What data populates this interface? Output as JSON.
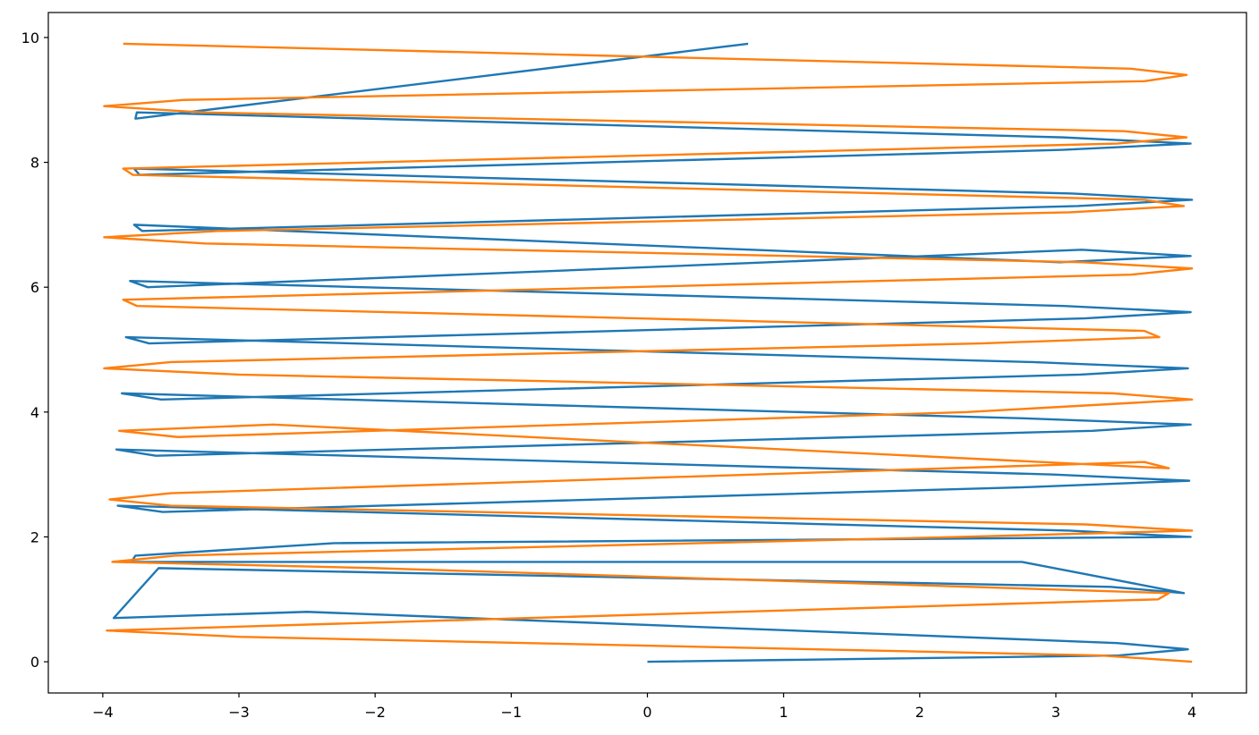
{
  "chart_data": {
    "type": "line",
    "title": "",
    "xlabel": "",
    "ylabel": "",
    "xlim": [
      -4.4,
      4.4
    ],
    "ylim": [
      -0.5,
      10.4
    ],
    "x_ticks": [
      -4,
      -3,
      -2,
      -1,
      0,
      1,
      2,
      3,
      4
    ],
    "x_tick_labels": [
      "−4",
      "−3",
      "−2",
      "−1",
      "0",
      "1",
      "2",
      "3",
      "4"
    ],
    "y_ticks": [
      0,
      2,
      4,
      6,
      8,
      10
    ],
    "y_tick_labels": [
      "0",
      "2",
      "4",
      "6",
      "8",
      "10"
    ],
    "grid": false,
    "series": [
      {
        "color": "#1f77b4",
        "x": [
          0.0,
          3.46,
          3.97,
          3.45,
          -2.5,
          -3.92,
          -3.59,
          3.4,
          3.94,
          2.75,
          -3.79,
          -3.76,
          -2.3,
          3.99,
          3.1,
          -3.89,
          -3.56,
          2.83,
          3.98,
          2.98,
          -3.9,
          -3.61,
          3.27,
          3.99,
          2.76,
          -3.86,
          -3.57,
          3.18,
          3.97,
          2.83,
          -3.83,
          -3.66,
          3.21,
          3.99,
          3.06,
          -3.8,
          -3.67,
          3.19,
          3.99,
          3.03,
          -3.77,
          -3.71,
          3.16,
          4.0,
          3.12,
          -3.77,
          -3.73,
          3.05,
          3.99,
          3.05,
          -3.75,
          -3.76,
          0.74
        ],
        "y": [
          0.0,
          0.1,
          0.2,
          0.3,
          0.8,
          0.7,
          1.5,
          1.2,
          1.1,
          1.6,
          1.6,
          1.7,
          1.9,
          2.0,
          2.1,
          2.5,
          2.4,
          2.8,
          2.9,
          3.0,
          3.4,
          3.3,
          3.7,
          3.8,
          3.9,
          4.3,
          4.2,
          4.6,
          4.7,
          4.8,
          5.2,
          5.1,
          5.5,
          5.6,
          5.7,
          6.1,
          6.0,
          6.6,
          6.5,
          6.4,
          7.0,
          6.9,
          7.3,
          7.4,
          7.5,
          7.9,
          7.8,
          8.2,
          8.3,
          8.4,
          8.8,
          8.7,
          9.9
        ]
      },
      {
        "color": "#ff7f0e",
        "x": [
          4.0,
          3.33,
          -3.0,
          -3.97,
          3.75,
          3.83,
          -2.0,
          -3.93,
          -3.47,
          2.3,
          4.0,
          3.22,
          -3.5,
          -3.95,
          -3.5,
          3.65,
          3.83,
          -2.75,
          -3.88,
          -3.45,
          2.35,
          4.0,
          3.42,
          -3.0,
          -3.99,
          -3.5,
          2.45,
          3.76,
          3.65,
          -3.75,
          -3.85,
          3.55,
          4.0,
          3.2,
          -3.25,
          -3.99,
          -3.15,
          3.1,
          3.94,
          3.65,
          -3.78,
          -3.85,
          3.45,
          3.96,
          3.5,
          -3.27,
          -3.99,
          -3.4,
          3.65,
          3.96,
          3.55,
          -3.85
        ],
        "y": [
          0.0,
          0.1,
          0.4,
          0.5,
          1.0,
          1.1,
          1.5,
          1.6,
          1.7,
          2.0,
          2.1,
          2.2,
          2.5,
          2.6,
          2.7,
          3.2,
          3.1,
          3.8,
          3.7,
          3.6,
          4.0,
          4.2,
          4.3,
          4.6,
          4.7,
          4.8,
          5.1,
          5.2,
          5.3,
          5.7,
          5.8,
          6.2,
          6.3,
          6.4,
          6.7,
          6.8,
          6.9,
          7.2,
          7.3,
          7.4,
          7.8,
          7.9,
          8.3,
          8.4,
          8.5,
          8.8,
          8.9,
          9.0,
          9.3,
          9.4,
          9.5,
          9.9
        ]
      }
    ]
  }
}
